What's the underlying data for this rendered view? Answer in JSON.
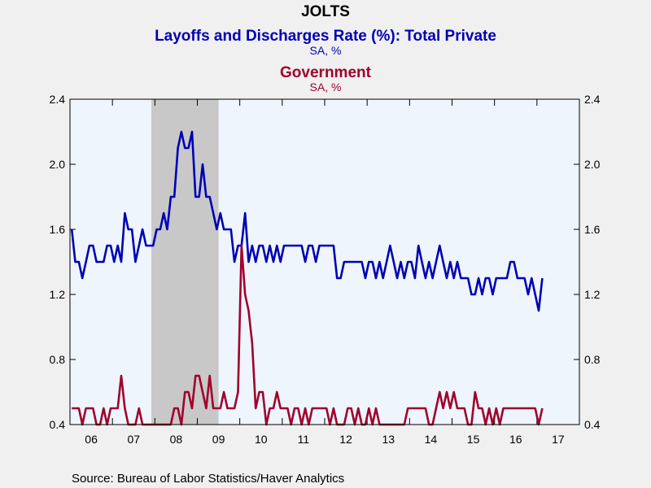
{
  "chart_data": {
    "type": "line",
    "title": "JOLTS",
    "subtitle_series1": "Layoffs and Discharges Rate (%): Total Private",
    "units_series1": "SA, %",
    "subtitle_series2": "Government",
    "units_series2": "SA, %",
    "source": "Source:  Bureau of Labor Statistics/Haver Analytics",
    "x_tick_labels": [
      "06",
      "07",
      "08",
      "09",
      "10",
      "11",
      "12",
      "13",
      "14",
      "15",
      "16",
      "17"
    ],
    "x_range": [
      "2006-01",
      "2017-12"
    ],
    "ylim": [
      0.4,
      2.4
    ],
    "y_ticks": [
      "0.4",
      "0.8",
      "1.2",
      "1.6",
      "2.0",
      "2.4"
    ],
    "y_tick_values": [
      0.4,
      0.8,
      1.2,
      1.6,
      2.0,
      2.4
    ],
    "recession_shading": {
      "start": "2007-12",
      "end": "2009-06",
      "color": "#c8c8c8"
    },
    "plot_background": "#eef5fc",
    "series": [
      {
        "name": "Layoffs and Discharges Rate (%): Total Private",
        "color": "#0000b4",
        "start": "2006-01",
        "values": [
          1.6,
          1.4,
          1.4,
          1.3,
          1.4,
          1.5,
          1.5,
          1.4,
          1.4,
          1.4,
          1.5,
          1.5,
          1.4,
          1.5,
          1.4,
          1.7,
          1.6,
          1.6,
          1.4,
          1.5,
          1.6,
          1.5,
          1.5,
          1.5,
          1.6,
          1.6,
          1.7,
          1.6,
          1.8,
          1.8,
          2.1,
          2.2,
          2.1,
          2.1,
          2.2,
          1.8,
          1.8,
          2.0,
          1.8,
          1.8,
          1.7,
          1.6,
          1.7,
          1.6,
          1.6,
          1.6,
          1.4,
          1.5,
          1.5,
          1.7,
          1.4,
          1.5,
          1.4,
          1.5,
          1.5,
          1.4,
          1.5,
          1.4,
          1.5,
          1.4,
          1.5,
          1.5,
          1.5,
          1.5,
          1.5,
          1.5,
          1.4,
          1.5,
          1.5,
          1.4,
          1.5,
          1.5,
          1.5,
          1.5,
          1.5,
          1.3,
          1.3,
          1.4,
          1.4,
          1.4,
          1.4,
          1.4,
          1.4,
          1.3,
          1.4,
          1.4,
          1.3,
          1.4,
          1.3,
          1.4,
          1.5,
          1.4,
          1.3,
          1.4,
          1.3,
          1.4,
          1.4,
          1.3,
          1.5,
          1.4,
          1.3,
          1.4,
          1.3,
          1.4,
          1.5,
          1.4,
          1.3,
          1.4,
          1.3,
          1.4,
          1.3,
          1.3,
          1.3,
          1.2,
          1.2,
          1.3,
          1.2,
          1.3,
          1.3,
          1.2,
          1.3,
          1.3,
          1.3,
          1.3,
          1.4,
          1.4,
          1.3,
          1.3,
          1.3,
          1.2,
          1.3,
          1.2,
          1.1,
          1.3
        ]
      },
      {
        "name": "Government",
        "color": "#a0002d",
        "start": "2006-01",
        "values": [
          0.5,
          0.5,
          0.5,
          0.4,
          0.5,
          0.5,
          0.5,
          0.4,
          0.4,
          0.5,
          0.4,
          0.5,
          0.5,
          0.5,
          0.7,
          0.5,
          0.4,
          0.4,
          0.4,
          0.5,
          0.4,
          0.4,
          0.4,
          0.4,
          0.4,
          0.4,
          0.4,
          0.4,
          0.4,
          0.5,
          0.5,
          0.4,
          0.6,
          0.6,
          0.5,
          0.7,
          0.7,
          0.6,
          0.5,
          0.7,
          0.5,
          0.5,
          0.5,
          0.6,
          0.5,
          0.5,
          0.5,
          0.6,
          1.5,
          1.2,
          1.1,
          0.9,
          0.5,
          0.6,
          0.6,
          0.4,
          0.5,
          0.5,
          0.6,
          0.5,
          0.5,
          0.5,
          0.4,
          0.5,
          0.5,
          0.4,
          0.5,
          0.4,
          0.5,
          0.5,
          0.5,
          0.5,
          0.5,
          0.4,
          0.5,
          0.4,
          0.4,
          0.4,
          0.5,
          0.5,
          0.4,
          0.5,
          0.4,
          0.4,
          0.5,
          0.4,
          0.5,
          0.4,
          0.4,
          0.4,
          0.4,
          0.4,
          0.4,
          0.4,
          0.4,
          0.5,
          0.5,
          0.5,
          0.5,
          0.5,
          0.5,
          0.4,
          0.4,
          0.5,
          0.6,
          0.5,
          0.6,
          0.5,
          0.6,
          0.5,
          0.5,
          0.5,
          0.4,
          0.4,
          0.6,
          0.5,
          0.5,
          0.4,
          0.5,
          0.4,
          0.5,
          0.4,
          0.5,
          0.5,
          0.5,
          0.5,
          0.5,
          0.5,
          0.5,
          0.5,
          0.5,
          0.5,
          0.4,
          0.5
        ]
      }
    ]
  }
}
